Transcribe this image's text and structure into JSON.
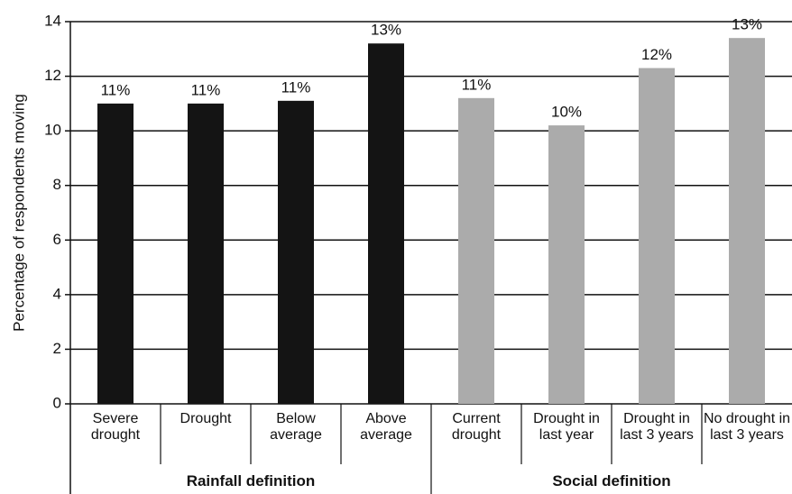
{
  "chart_data": {
    "type": "bar",
    "y_label": "Percentage of respondents moving",
    "ylim": [
      0,
      14
    ],
    "yticks": [
      0,
      2,
      4,
      6,
      8,
      10,
      12,
      14
    ],
    "grid": true,
    "groups": [
      {
        "label": "Rainfall definition",
        "color": "#141414",
        "categories": [
          "Severe drought",
          "Drought",
          "Below average",
          "Above average"
        ],
        "values": [
          11.0,
          11.0,
          11.1,
          13.2
        ],
        "value_labels": [
          "11%",
          "11%",
          "11%",
          "13%"
        ]
      },
      {
        "label": "Social definition",
        "color": "#ababab",
        "categories": [
          "Current drought",
          "Drought in last year",
          "Drought in last 3 years",
          "No drought in last 3 years"
        ],
        "values": [
          11.2,
          10.2,
          12.3,
          13.4
        ],
        "value_labels": [
          "11%",
          "10%",
          "12%",
          "13%"
        ]
      }
    ]
  }
}
